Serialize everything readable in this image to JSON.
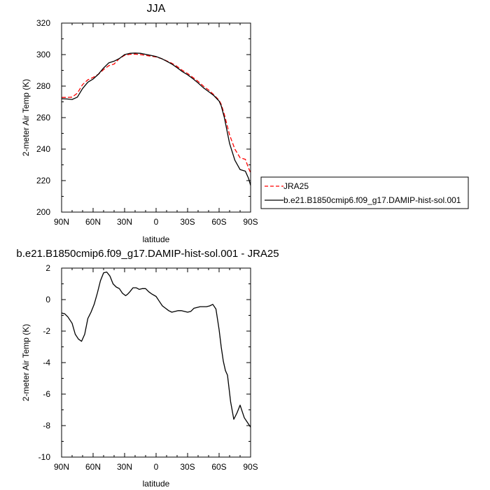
{
  "chart_data": [
    {
      "type": "line",
      "title": "JJA",
      "xlabel": "latitude",
      "ylabel": "2-meter Air Temp (K)",
      "x_range": [
        90,
        -90
      ],
      "ylim": [
        200,
        320
      ],
      "x_ticks": [
        90,
        60,
        30,
        0,
        -30,
        -60,
        -90
      ],
      "x_tick_labels": [
        "90N",
        "60N",
        "30N",
        "0",
        "30S",
        "60S",
        "90S"
      ],
      "y_ticks": [
        200,
        220,
        240,
        260,
        280,
        300,
        320
      ],
      "y_tick_labels": [
        "200",
        "220",
        "240",
        "260",
        "280",
        "300",
        "320"
      ],
      "legend": {
        "placement": "right"
      },
      "series": [
        {
          "name": "JRA25",
          "color": "#ff0000",
          "dash": "dashed",
          "x": [
            90,
            85,
            80,
            75,
            70,
            65,
            60,
            55,
            50,
            45,
            40,
            35,
            30,
            25,
            20,
            15,
            10,
            5,
            0,
            -5,
            -10,
            -15,
            -20,
            -25,
            -30,
            -35,
            -40,
            -45,
            -50,
            -55,
            -60,
            -62,
            -65,
            -70,
            -75,
            -80,
            -85,
            -88,
            -90
          ],
          "y": [
            272.8,
            272.8,
            273.0,
            275.5,
            281.0,
            284.0,
            285.5,
            287.5,
            290.5,
            293.0,
            294.0,
            297.5,
            299.5,
            300.2,
            300.3,
            300.0,
            299.5,
            299.0,
            298.5,
            297.5,
            296.0,
            294.5,
            292.5,
            290.0,
            288.0,
            285.5,
            283.0,
            280.0,
            277.5,
            274.5,
            271.0,
            268.5,
            262.0,
            249.0,
            240.0,
            234.5,
            233.5,
            228.0,
            225.0
          ]
        },
        {
          "name": "b.e21.B1850cmip6.f09_g17.DAMIP-hist-sol.001",
          "color": "#000000",
          "dash": "solid",
          "x": [
            90,
            85,
            80,
            75,
            70,
            65,
            60,
            55,
            50,
            45,
            40,
            35,
            30,
            25,
            20,
            15,
            10,
            5,
            0,
            -5,
            -10,
            -15,
            -20,
            -25,
            -30,
            -35,
            -40,
            -45,
            -50,
            -55,
            -60,
            -62,
            -65,
            -70,
            -75,
            -80,
            -85,
            -88,
            -90
          ],
          "y": [
            272.0,
            271.8,
            271.5,
            273.0,
            278.5,
            282.5,
            284.5,
            287.5,
            291.5,
            294.8,
            295.8,
            297.5,
            300.0,
            300.8,
            301.0,
            300.8,
            300.2,
            299.5,
            298.8,
            297.5,
            295.8,
            294.0,
            291.7,
            289.2,
            287.2,
            284.7,
            282.0,
            279.0,
            276.5,
            274.0,
            270.5,
            267.5,
            260.0,
            243.5,
            233.0,
            227.0,
            226.0,
            221.5,
            217.0
          ]
        }
      ]
    },
    {
      "type": "line",
      "title": "b.e21.B1850cmip6.f09_g17.DAMIP-hist-sol.001 - JRA25",
      "xlabel": "latitude",
      "ylabel": "2-meter Air Temp (K)",
      "x_range": [
        90,
        -90
      ],
      "ylim": [
        -10,
        2
      ],
      "x_ticks": [
        90,
        60,
        30,
        0,
        -30,
        -60,
        -90
      ],
      "x_tick_labels": [
        "90N",
        "60N",
        "30N",
        "0",
        "30S",
        "60S",
        "90S"
      ],
      "y_ticks": [
        -10,
        -8,
        -6,
        -4,
        -2,
        0,
        2
      ],
      "y_tick_labels": [
        "-10",
        "-8",
        "-6",
        "-4",
        "-2",
        "0",
        "2"
      ],
      "series": [
        {
          "color": "#000000",
          "dash": "solid",
          "x": [
            90,
            87,
            84,
            80,
            77,
            74,
            71,
            68,
            65,
            62,
            59,
            56,
            53,
            50,
            47,
            44,
            41,
            38,
            35,
            32,
            29,
            27,
            25,
            22,
            19,
            16,
            13,
            10,
            7,
            4,
            0,
            -3,
            -6,
            -9,
            -12,
            -15,
            -18,
            -21,
            -24,
            -27,
            -30,
            -33,
            -36,
            -39,
            -42,
            -45,
            -48,
            -51,
            -54,
            -57,
            -60,
            -62,
            -64,
            -66,
            -68,
            -71,
            -74,
            -77,
            -80,
            -84,
            -87,
            -90
          ],
          "y": [
            -0.85,
            -0.9,
            -1.1,
            -1.5,
            -2.2,
            -2.5,
            -2.65,
            -2.2,
            -1.2,
            -0.8,
            -0.3,
            0.4,
            1.2,
            1.7,
            1.75,
            1.5,
            1.0,
            0.8,
            0.7,
            0.4,
            0.25,
            0.35,
            0.5,
            0.75,
            0.75,
            0.65,
            0.7,
            0.7,
            0.5,
            0.35,
            0.2,
            -0.1,
            -0.4,
            -0.55,
            -0.7,
            -0.8,
            -0.75,
            -0.7,
            -0.7,
            -0.75,
            -0.8,
            -0.75,
            -0.55,
            -0.5,
            -0.45,
            -0.45,
            -0.45,
            -0.4,
            -0.3,
            -0.6,
            -1.9,
            -3.0,
            -3.9,
            -4.5,
            -4.8,
            -6.5,
            -7.6,
            -7.2,
            -6.7,
            -7.5,
            -7.8,
            -8.1
          ]
        }
      ]
    }
  ]
}
